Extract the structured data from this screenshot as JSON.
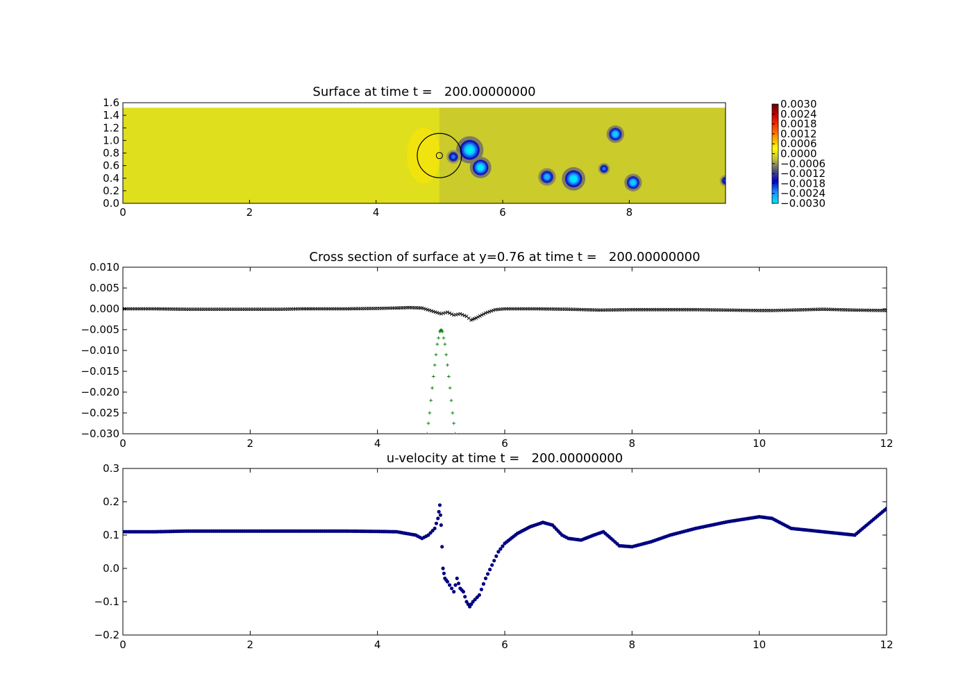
{
  "colors": {
    "heat_stops": [
      "#00e5ff",
      "#1e90ff",
      "#0000c8",
      "#555577",
      "#bfbf3a",
      "#ffff00",
      "#ff9a00",
      "#ff3a00",
      "#cc0000",
      "#660000"
    ],
    "surface_marker": "#000000",
    "obstacle_marker": "#008000",
    "velocity_marker": "#000080"
  },
  "chart_data": [
    {
      "type": "heatmap",
      "title": "Surface at time t =   200.00000000",
      "xlabel": "",
      "ylabel": "",
      "xlim": [
        0,
        9.52
      ],
      "ylim": [
        0,
        1.6
      ],
      "domain_ylim": [
        0,
        1.52
      ],
      "xticks": [
        "0",
        "2",
        "4",
        "6",
        "8"
      ],
      "xtick_values": [
        0,
        2,
        4,
        6,
        8
      ],
      "yticks": [
        "0.0",
        "0.2",
        "0.4",
        "0.6",
        "0.8",
        "1.0",
        "1.2",
        "1.4",
        "1.6"
      ],
      "ytick_values": [
        0,
        0.2,
        0.4,
        0.6,
        0.8,
        1.0,
        1.2,
        1.4,
        1.6
      ],
      "colorbar": {
        "range": [
          -0.003,
          0.003
        ],
        "ticks": [
          "0.0030",
          "0.0024",
          "0.0018",
          "0.0012",
          "0.0006",
          "0.0000",
          "−0.0006",
          "−0.0012",
          "−0.0018",
          "−0.0024",
          "−0.0030"
        ],
        "tick_values": [
          0.003,
          0.0024,
          0.0018,
          0.0012,
          0.0006,
          0,
          -0.0006,
          -0.0012,
          -0.0018,
          -0.0024,
          -0.003
        ]
      },
      "obstacle": {
        "center_x": 5.0,
        "center_y": 0.76,
        "radius": 0.35,
        "inner_radius": 0.05
      },
      "vortices": [
        {
          "x": 5.48,
          "y": 0.85,
          "r": 0.14,
          "value": -0.003
        },
        {
          "x": 5.65,
          "y": 0.57,
          "r": 0.11,
          "value": -0.003
        },
        {
          "x": 5.22,
          "y": 0.74,
          "r": 0.07,
          "value": -0.0022
        },
        {
          "x": 6.7,
          "y": 0.42,
          "r": 0.09,
          "value": -0.0026
        },
        {
          "x": 7.12,
          "y": 0.39,
          "r": 0.12,
          "value": -0.003
        },
        {
          "x": 7.6,
          "y": 0.55,
          "r": 0.06,
          "value": -0.0022
        },
        {
          "x": 7.78,
          "y": 1.1,
          "r": 0.09,
          "value": -0.0028
        },
        {
          "x": 8.06,
          "y": 0.33,
          "r": 0.09,
          "value": -0.0028
        },
        {
          "x": 9.52,
          "y": 0.36,
          "r": 0.06,
          "value": -0.002
        }
      ]
    },
    {
      "type": "scatter",
      "title": "Cross section of surface at y=0.76 at time t =   200.00000000",
      "xlabel": "",
      "ylabel": "",
      "xlim": [
        0,
        12
      ],
      "ylim": [
        -0.03,
        0.01
      ],
      "xticks": [
        "0",
        "2",
        "4",
        "6",
        "8",
        "10",
        "12"
      ],
      "xtick_values": [
        0,
        2,
        4,
        6,
        8,
        10,
        12
      ],
      "yticks": [
        "0.010",
        "0.005",
        "0.000",
        "−0.005",
        "−0.010",
        "−0.015",
        "−0.020",
        "−0.025",
        "−0.030"
      ],
      "ytick_values": [
        0.01,
        0.005,
        0,
        -0.005,
        -0.01,
        -0.015,
        -0.02,
        -0.025,
        -0.03
      ],
      "series": [
        {
          "marker": "x",
          "x": [
            0,
            0.5,
            1.0,
            1.5,
            2.0,
            2.5,
            2.8,
            3.0,
            3.5,
            4.0,
            4.3,
            4.5,
            4.7,
            4.85,
            5.0,
            5.1,
            5.2,
            5.3,
            5.4,
            5.47,
            5.55,
            5.7,
            5.85,
            6.0,
            6.5,
            7.0,
            7.5,
            8.0,
            8.5,
            9.0,
            9.5,
            10.0,
            10.2,
            10.5,
            11.0,
            11.5,
            12.0
          ],
          "y": [
            0,
            0,
            -0.0001,
            -0.0001,
            -0.0001,
            -0.0001,
            0,
            0,
            0,
            0.0001,
            0.0002,
            0.0003,
            0.0002,
            -0.0005,
            -0.0012,
            -0.0008,
            -0.0015,
            -0.0012,
            -0.0018,
            -0.0027,
            -0.0022,
            -0.001,
            -0.0002,
            0,
            0,
            -0.0001,
            -0.0003,
            -0.0002,
            -0.0002,
            -0.0002,
            -0.0003,
            -0.0004,
            -0.0004,
            -0.0003,
            -0.0001,
            -0.0003,
            -0.0004
          ]
        },
        {
          "marker": "+",
          "x": [
            4.78,
            4.82,
            4.86,
            4.9,
            4.94,
            4.98,
            5.0,
            5.02,
            5.06,
            5.1,
            5.14,
            5.18,
            5.22
          ],
          "y": [
            -0.03,
            -0.025,
            -0.019,
            -0.0135,
            -0.0085,
            -0.0055,
            -0.005,
            -0.0055,
            -0.0085,
            -0.0135,
            -0.019,
            -0.025,
            -0.03
          ]
        }
      ]
    },
    {
      "type": "scatter",
      "title": "u-velocity at time t =   200.00000000",
      "xlabel": "",
      "ylabel": "",
      "xlim": [
        0,
        12
      ],
      "ylim": [
        -0.2,
        0.3
      ],
      "xticks": [
        "0",
        "2",
        "4",
        "6",
        "8",
        "10",
        "12"
      ],
      "xtick_values": [
        0,
        2,
        4,
        6,
        8,
        10,
        12
      ],
      "yticks": [
        "0.3",
        "0.2",
        "0.1",
        "0.0",
        "−0.1",
        "−0.2"
      ],
      "ytick_values": [
        0.3,
        0.2,
        0.1,
        0,
        -0.1,
        -0.2
      ],
      "series": [
        {
          "marker": "o",
          "x": [
            0,
            0.5,
            1.0,
            2.0,
            2.8,
            3.5,
            4.0,
            4.3,
            4.6,
            4.7,
            4.8,
            4.9,
            4.95,
            4.98,
            5.0,
            5.03,
            5.06,
            5.1,
            5.2,
            5.25,
            5.3,
            5.35,
            5.4,
            5.45,
            5.5,
            5.6,
            5.7,
            5.8,
            5.9,
            6.0,
            6.2,
            6.4,
            6.6,
            6.75,
            6.9,
            7.0,
            7.2,
            7.4,
            7.55,
            7.7,
            7.8,
            8.0,
            8.3,
            8.6,
            9.0,
            9.5,
            10.0,
            10.2,
            10.5,
            11.0,
            11.5,
            12.0
          ],
          "y": [
            0.11,
            0.11,
            0.112,
            0.112,
            0.112,
            0.112,
            0.111,
            0.11,
            0.1,
            0.09,
            0.1,
            0.12,
            0.15,
            0.19,
            0.13,
            0.0,
            -0.03,
            -0.04,
            -0.07,
            -0.03,
            -0.06,
            -0.07,
            -0.1,
            -0.115,
            -0.1,
            -0.08,
            -0.03,
            0.01,
            0.05,
            0.075,
            0.105,
            0.125,
            0.138,
            0.13,
            0.1,
            0.09,
            0.085,
            0.1,
            0.11,
            0.085,
            0.068,
            0.065,
            0.08,
            0.1,
            0.12,
            0.14,
            0.155,
            0.15,
            0.12,
            0.11,
            0.1,
            0.18
          ]
        }
      ]
    }
  ]
}
